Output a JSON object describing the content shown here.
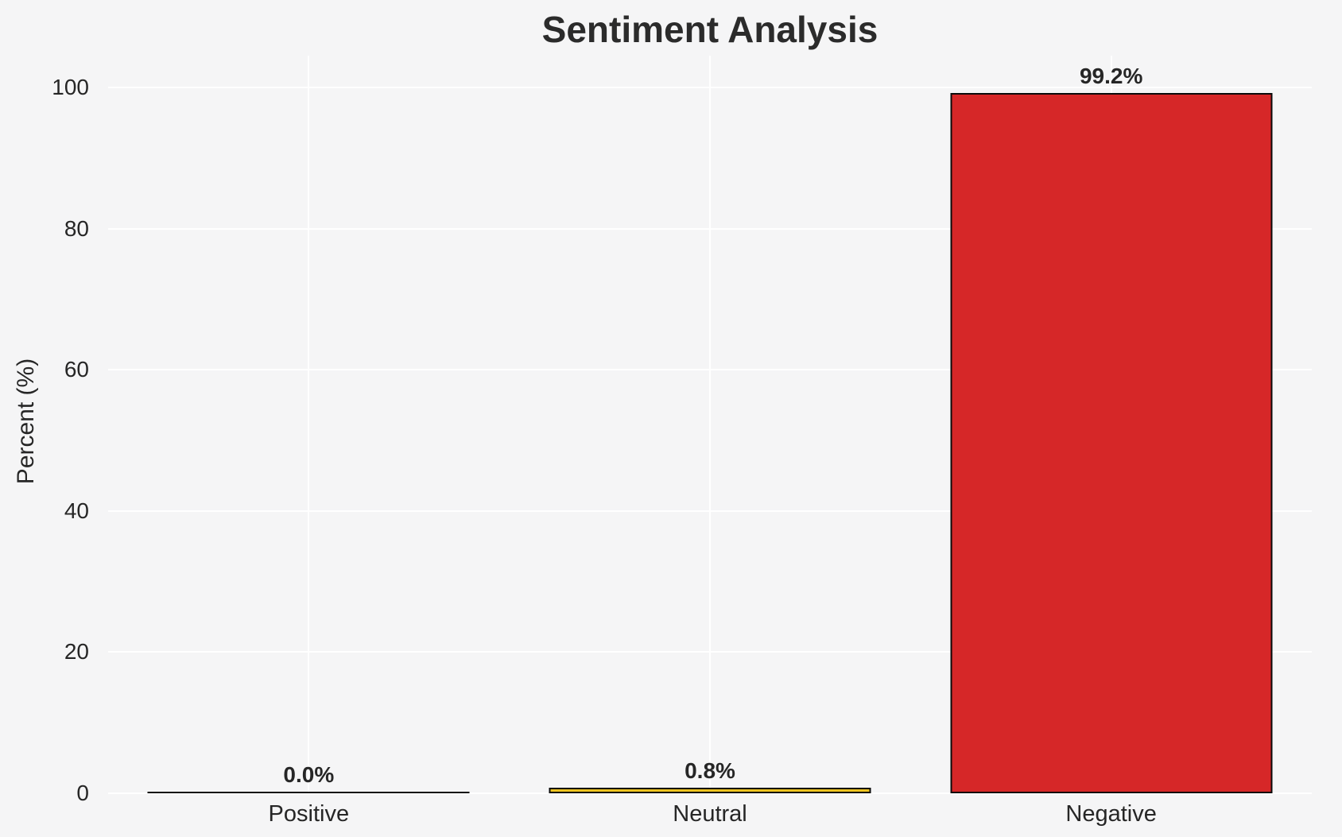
{
  "chart_data": {
    "type": "bar",
    "title": "Sentiment Analysis",
    "xlabel": "",
    "ylabel": "Percent (%)",
    "categories": [
      "Positive",
      "Neutral",
      "Negative"
    ],
    "values": [
      0.0,
      0.8,
      99.2
    ],
    "value_labels": [
      "0.0%",
      "0.8%",
      "99.2%"
    ],
    "bar_fill_colors": [
      "none",
      "#f0c420",
      "#d62728"
    ],
    "bar_edge_color": "#0a0a0a",
    "y_ticks": [
      0,
      20,
      40,
      60,
      80,
      100
    ],
    "ylim": [
      0,
      104.5
    ],
    "grid": "on",
    "grid_color": "#ffffff",
    "legend": "none",
    "background_color": "#f5f5f6",
    "text_color": "#262626"
  }
}
